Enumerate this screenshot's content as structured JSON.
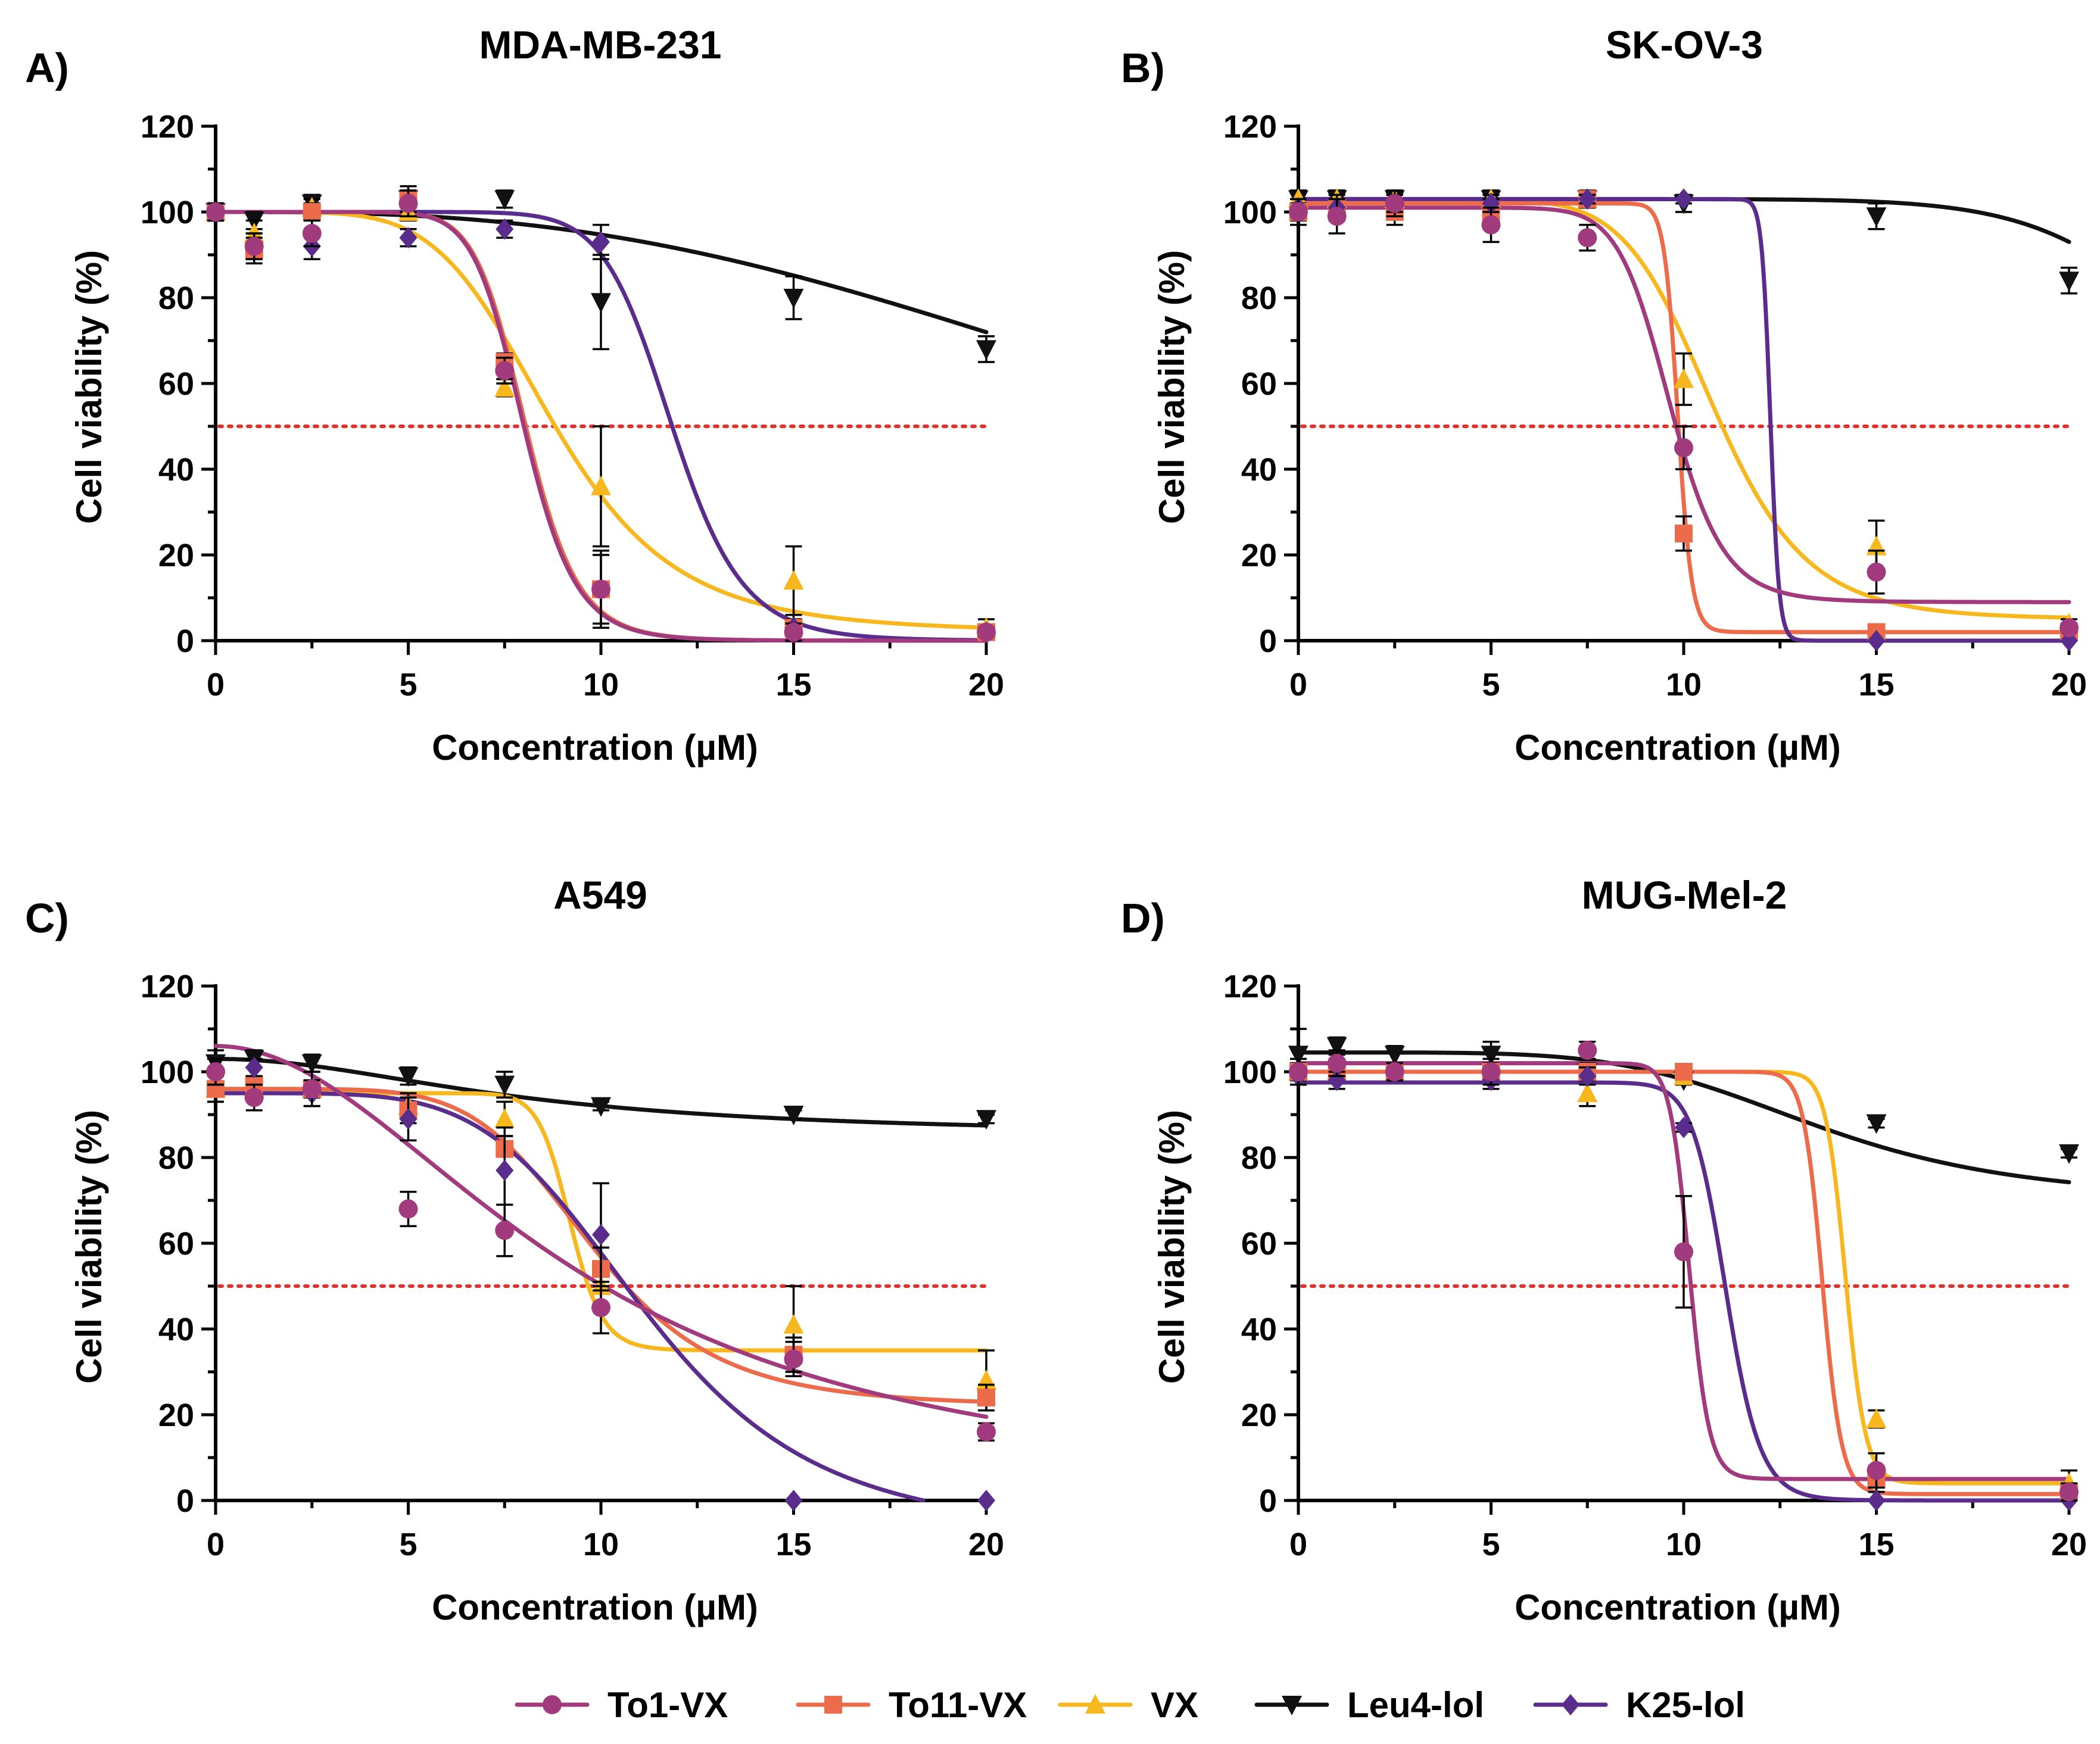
{
  "colors": {
    "To1-VX": "#a13b7e",
    "To11-VX": "#ec6b4b",
    "VX": "#f7b81f",
    "Leu4-lol": "#111111",
    "K25-lol": "#5a2d8c",
    "ic50_line": "#e8302a"
  },
  "legend": [
    {
      "name": "To1-VX",
      "marker": "circle"
    },
    {
      "name": "To11-VX",
      "marker": "square"
    },
    {
      "name": "VX",
      "marker": "triangle-up"
    },
    {
      "name": "Leu4-lol",
      "marker": "triangle-down"
    },
    {
      "name": "K25-lol",
      "marker": "diamond"
    }
  ],
  "chart_data": [
    {
      "type": "scatter",
      "panel": "A)",
      "title": "MDA-MB-231",
      "xlabel": "Concentration (µM)",
      "ylabel": "Cell viability (%)",
      "xlim": [
        0,
        20
      ],
      "ylim": [
        0,
        120
      ],
      "xticks": [
        0,
        5,
        10,
        15,
        20
      ],
      "yticks": [
        0,
        20,
        40,
        60,
        80,
        100,
        120
      ],
      "reference_line": 50,
      "x": [
        0,
        1,
        2.5,
        5,
        7.5,
        10,
        15,
        20
      ],
      "series": [
        {
          "name": "To1-VX",
          "values": [
            100,
            92,
            95,
            102,
            63,
            12,
            2,
            2
          ],
          "errors": [
            2,
            3,
            3,
            3,
            3,
            9,
            2,
            1
          ],
          "fit": {
            "top": 100,
            "bottom": 0,
            "ec50": 8.0,
            "hill": 12
          }
        },
        {
          "name": "To11-VX",
          "values": [
            100,
            91,
            100,
            103,
            65,
            12,
            3,
            2
          ],
          "errors": [
            2,
            3,
            2,
            2,
            2,
            8,
            2,
            1
          ],
          "fit": {
            "top": 100,
            "bottom": 0,
            "ec50": 8.05,
            "hill": 12
          }
        },
        {
          "name": "VX",
          "values": [
            100,
            95,
            101,
            100,
            59,
            36,
            14,
            3
          ],
          "errors": [
            2,
            3,
            2,
            2,
            2,
            14,
            8,
            2
          ],
          "fit": {
            "top": 100,
            "bottom": 2,
            "ec50": 8.75,
            "hill": 5.5
          }
        },
        {
          "name": "Leu4-lol",
          "values": [
            100,
            98,
            102,
            103,
            103,
            79,
            80,
            68
          ],
          "errors": [
            2,
            2,
            2,
            3,
            2,
            11,
            5,
            3
          ],
          "fit": {
            "top": 100,
            "bottom": 0,
            "ec50": 28,
            "hill": 2.8
          }
        },
        {
          "name": "K25-lol",
          "values": [
            100,
            92,
            92,
            94,
            96,
            93,
            3,
            2
          ],
          "errors": [
            2,
            3,
            3,
            2,
            2,
            4,
            3,
            1
          ],
          "fit": {
            "top": 100,
            "bottom": 0,
            "ec50": 11.85,
            "hill": 13
          }
        }
      ]
    },
    {
      "type": "scatter",
      "panel": "B)",
      "title": "SK-OV-3",
      "xlabel": "Concentration (µM)",
      "ylabel": "Cell viability (%)",
      "xlim": [
        0,
        20
      ],
      "ylim": [
        0,
        120
      ],
      "xticks": [
        0,
        5,
        10,
        15,
        20
      ],
      "yticks": [
        0,
        20,
        40,
        60,
        80,
        100,
        120
      ],
      "reference_line": 50,
      "x": [
        0,
        1,
        2.5,
        5,
        7.5,
        10,
        15,
        20
      ],
      "series": [
        {
          "name": "To1-VX",
          "values": [
            100,
            99,
            102,
            97,
            94,
            45,
            16,
            3
          ],
          "errors": [
            3,
            4,
            3,
            4,
            3,
            5,
            5,
            1
          ],
          "fit": {
            "top": 101,
            "bottom": 9,
            "ec50": 9.65,
            "hill": 14
          }
        },
        {
          "name": "To11-VX",
          "values": [
            100,
            101,
            100,
            100,
            103,
            25,
            2,
            2
          ],
          "errors": [
            2,
            3,
            3,
            3,
            1,
            4,
            1,
            1
          ],
          "fit": {
            "top": 102,
            "bottom": 2,
            "ec50": 9.85,
            "hill": 55
          }
        },
        {
          "name": "VX",
          "values": [
            103,
            103,
            103,
            103,
            103,
            61,
            22,
            4
          ],
          "errors": [
            2,
            2,
            2,
            2,
            2,
            6,
            6,
            1
          ],
          "fit": {
            "top": 103,
            "bottom": 5,
            "ec50": 10.8,
            "hill": 9
          }
        },
        {
          "name": "Leu4-lol",
          "values": [
            103,
            103,
            103,
            103,
            103,
            102,
            99,
            84
          ],
          "errors": [
            2,
            2,
            1,
            2,
            1,
            2,
            3,
            3
          ],
          "fit": {
            "top": 103,
            "bottom": 0,
            "ec50": 25,
            "hill": 10
          }
        },
        {
          "name": "K25-lol",
          "values": [
            101,
            101,
            102,
            102,
            103,
            103,
            0,
            0
          ],
          "errors": [
            2,
            2,
            2,
            2,
            1,
            1,
            0,
            0
          ],
          "fit": {
            "top": 103,
            "bottom": 0,
            "ec50": 12.25,
            "hill": 110
          }
        }
      ]
    },
    {
      "type": "scatter",
      "panel": "C)",
      "title": "A549",
      "xlabel": "Concentration (µM)",
      "ylabel": "Cell viability (%)",
      "xlim": [
        0,
        20
      ],
      "ylim": [
        0,
        120
      ],
      "xticks": [
        0,
        5,
        10,
        15,
        20
      ],
      "yticks": [
        0,
        20,
        40,
        60,
        80,
        100,
        120
      ],
      "reference_line": 50,
      "x": [
        0,
        1,
        2.5,
        5,
        7.5,
        10,
        15,
        20
      ],
      "series": [
        {
          "name": "To1-VX",
          "values": [
            100,
            94,
            96,
            68,
            63,
            45,
            33,
            16
          ],
          "errors": [
            3,
            3,
            4,
            4,
            6,
            6,
            4,
            2
          ],
          "fit": {
            "top": 106,
            "bottom": 0,
            "ec50": 9.5,
            "hill": 2.0
          }
        },
        {
          "name": "To11-VX",
          "values": [
            96,
            97,
            96,
            91,
            82,
            54,
            34,
            24
          ],
          "errors": [
            3,
            2,
            2,
            3,
            5,
            5,
            4,
            3
          ],
          "fit": {
            "top": 96,
            "bottom": 22,
            "ec50": 9.8,
            "hill": 6
          }
        },
        {
          "name": "VX",
          "values": [
            96,
            96,
            96,
            92,
            89,
            50,
            41,
            28
          ],
          "errors": [
            3,
            2,
            2,
            3,
            4,
            5,
            9,
            7
          ],
          "fit": {
            "top": 95,
            "bottom": 35,
            "ec50": 9.2,
            "hill": 22
          }
        },
        {
          "name": "Leu4-lol",
          "values": [
            102,
            103,
            102,
            99,
            97,
            92,
            90,
            89
          ],
          "errors": [
            3,
            2,
            2,
            2,
            3,
            1,
            1,
            1
          ],
          "fit": {
            "top": 103,
            "bottom": 85,
            "ec50": 8,
            "hill": 2.0
          }
        },
        {
          "name": "K25-lol",
          "values": [
            100,
            101,
            95,
            89,
            77,
            62,
            0,
            0
          ],
          "errors": [
            3,
            2,
            3,
            5,
            8,
            12,
            0,
            0
          ],
          "fit": {
            "top": 95,
            "bottom": -8,
            "ec50": 11.2,
            "hill": 5.0
          }
        }
      ]
    },
    {
      "type": "scatter",
      "panel": "D)",
      "title": "MUG-Mel-2",
      "xlabel": "Concentration (µM)",
      "ylabel": "Cell viability (%)",
      "xlim": [
        0,
        20
      ],
      "ylim": [
        0,
        120
      ],
      "xticks": [
        0,
        5,
        10,
        15,
        20
      ],
      "yticks": [
        0,
        20,
        40,
        60,
        80,
        100,
        120
      ],
      "reference_line": 50,
      "x": [
        0,
        1,
        2.5,
        5,
        7.5,
        10,
        15,
        20
      ],
      "series": [
        {
          "name": "To1-VX",
          "values": [
            100,
            102,
            100,
            100,
            105,
            58,
            7,
            2
          ],
          "errors": [
            3,
            3,
            2,
            3,
            2,
            13,
            4,
            2
          ],
          "fit": {
            "top": 102,
            "bottom": 5,
            "ec50": 10.15,
            "hill": 40
          }
        },
        {
          "name": "To11-VX",
          "values": [
            100,
            100,
            100,
            100,
            100,
            100,
            5,
            2
          ],
          "errors": [
            2,
            2,
            2,
            2,
            2,
            1,
            3,
            1
          ],
          "fit": {
            "top": 100,
            "bottom": 1.5,
            "ec50": 13.6,
            "hill": 55
          }
        },
        {
          "name": "VX",
          "values": [
            100,
            100,
            100,
            100,
            95,
            99,
            19,
            4
          ],
          "errors": [
            2,
            2,
            2,
            2,
            3,
            1,
            2,
            3
          ],
          "fit": {
            "top": 100,
            "bottom": 4,
            "ec50": 14.2,
            "hill": 55
          }
        },
        {
          "name": "Leu4-lol",
          "values": [
            104,
            106,
            104,
            104,
            100,
            98,
            88,
            81
          ],
          "errors": [
            6,
            2,
            2,
            3,
            2,
            1,
            1,
            1
          ],
          "fit": {
            "top": 104.5,
            "bottom": 70,
            "ec50": 13.5,
            "hill": 5
          }
        },
        {
          "name": "K25-lol",
          "values": [
            99,
            98,
            100,
            98,
            99,
            87,
            0,
            0
          ],
          "errors": [
            2,
            2,
            2,
            2,
            2,
            1,
            0,
            0
          ],
          "fit": {
            "top": 97.5,
            "bottom": 0,
            "ec50": 11.1,
            "hill": 25
          }
        }
      ]
    }
  ]
}
